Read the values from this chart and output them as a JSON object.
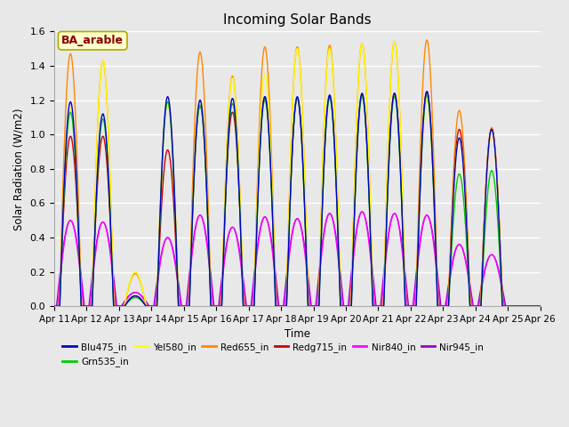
{
  "title": "Incoming Solar Bands",
  "xlabel": "Time",
  "ylabel": "Solar Radiation (W/m2)",
  "annotation": "BA_arable",
  "ylim": [
    0,
    1.6
  ],
  "n_days": 15,
  "start_day": 11,
  "legend_entries": [
    {
      "label": "Blu475_in",
      "color": "#0000cc"
    },
    {
      "label": "Grn535_in",
      "color": "#00cc00"
    },
    {
      "label": "Yel580_in",
      "color": "#ffff00"
    },
    {
      "label": "Red655_in",
      "color": "#ff8800"
    },
    {
      "label": "Redg715_in",
      "color": "#cc0000"
    },
    {
      "label": "Nir840_in",
      "color": "#ff00ff"
    },
    {
      "label": "Nir945_in",
      "color": "#9900cc"
    }
  ],
  "bg_color": "#e8e8e8",
  "grid_color": "#ffffff",
  "day_peaks": [
    {
      "day": 0,
      "blu": 1.19,
      "grn": 1.13,
      "yel": 1.15,
      "red": 1.47,
      "redg": 0.99,
      "nir840": 0.5,
      "nir945": 0.5
    },
    {
      "day": 1,
      "blu": 1.12,
      "grn": 1.09,
      "yel": 1.43,
      "red": 1.43,
      "redg": 0.99,
      "nir840": 0.49,
      "nir945": 0.49
    },
    {
      "day": 2,
      "blu": 0.06,
      "grn": 0.05,
      "yel": 0.2,
      "red": 0.19,
      "redg": 0.06,
      "nir840": 0.08,
      "nir945": 0.08
    },
    {
      "day": 3,
      "blu": 1.22,
      "grn": 1.19,
      "yel": 1.19,
      "red": 1.19,
      "redg": 0.91,
      "nir840": 0.4,
      "nir945": 0.4
    },
    {
      "day": 4,
      "blu": 1.2,
      "grn": 1.17,
      "yel": 1.2,
      "red": 1.48,
      "redg": 1.17,
      "nir840": 0.53,
      "nir945": 0.53
    },
    {
      "day": 5,
      "blu": 1.21,
      "grn": 1.18,
      "yel": 1.33,
      "red": 1.34,
      "redg": 1.13,
      "nir840": 0.46,
      "nir945": 0.46
    },
    {
      "day": 6,
      "blu": 1.22,
      "grn": 1.2,
      "yel": 1.35,
      "red": 1.51,
      "redg": 1.22,
      "nir840": 0.52,
      "nir945": 0.52
    },
    {
      "day": 7,
      "blu": 1.22,
      "grn": 1.21,
      "yel": 1.5,
      "red": 1.51,
      "redg": 1.21,
      "nir840": 0.51,
      "nir945": 0.51
    },
    {
      "day": 8,
      "blu": 1.23,
      "grn": 1.21,
      "yel": 1.5,
      "red": 1.52,
      "redg": 1.22,
      "nir840": 0.54,
      "nir945": 0.54
    },
    {
      "day": 9,
      "blu": 1.24,
      "grn": 1.22,
      "yel": 1.53,
      "red": 1.53,
      "redg": 1.23,
      "nir840": 0.55,
      "nir945": 0.55
    },
    {
      "day": 10,
      "blu": 1.24,
      "grn": 1.22,
      "yel": 1.54,
      "red": 1.54,
      "redg": 1.24,
      "nir840": 0.54,
      "nir945": 0.54
    },
    {
      "day": 11,
      "blu": 1.25,
      "grn": 1.23,
      "yel": 1.2,
      "red": 1.55,
      "redg": 1.25,
      "nir840": 0.53,
      "nir945": 0.53
    },
    {
      "day": 12,
      "blu": 0.98,
      "grn": 0.77,
      "yel": 0.98,
      "red": 1.14,
      "redg": 1.03,
      "nir840": 0.36,
      "nir945": 0.36
    },
    {
      "day": 13,
      "blu": 1.03,
      "grn": 0.79,
      "yel": 1.02,
      "red": 1.04,
      "redg": 1.03,
      "nir840": 0.3,
      "nir945": 0.3
    },
    {
      "day": 14,
      "blu": 0.0,
      "grn": 0.0,
      "yel": 0.0,
      "red": 0.0,
      "redg": 0.0,
      "nir840": 0.0,
      "nir945": 0.0
    }
  ]
}
